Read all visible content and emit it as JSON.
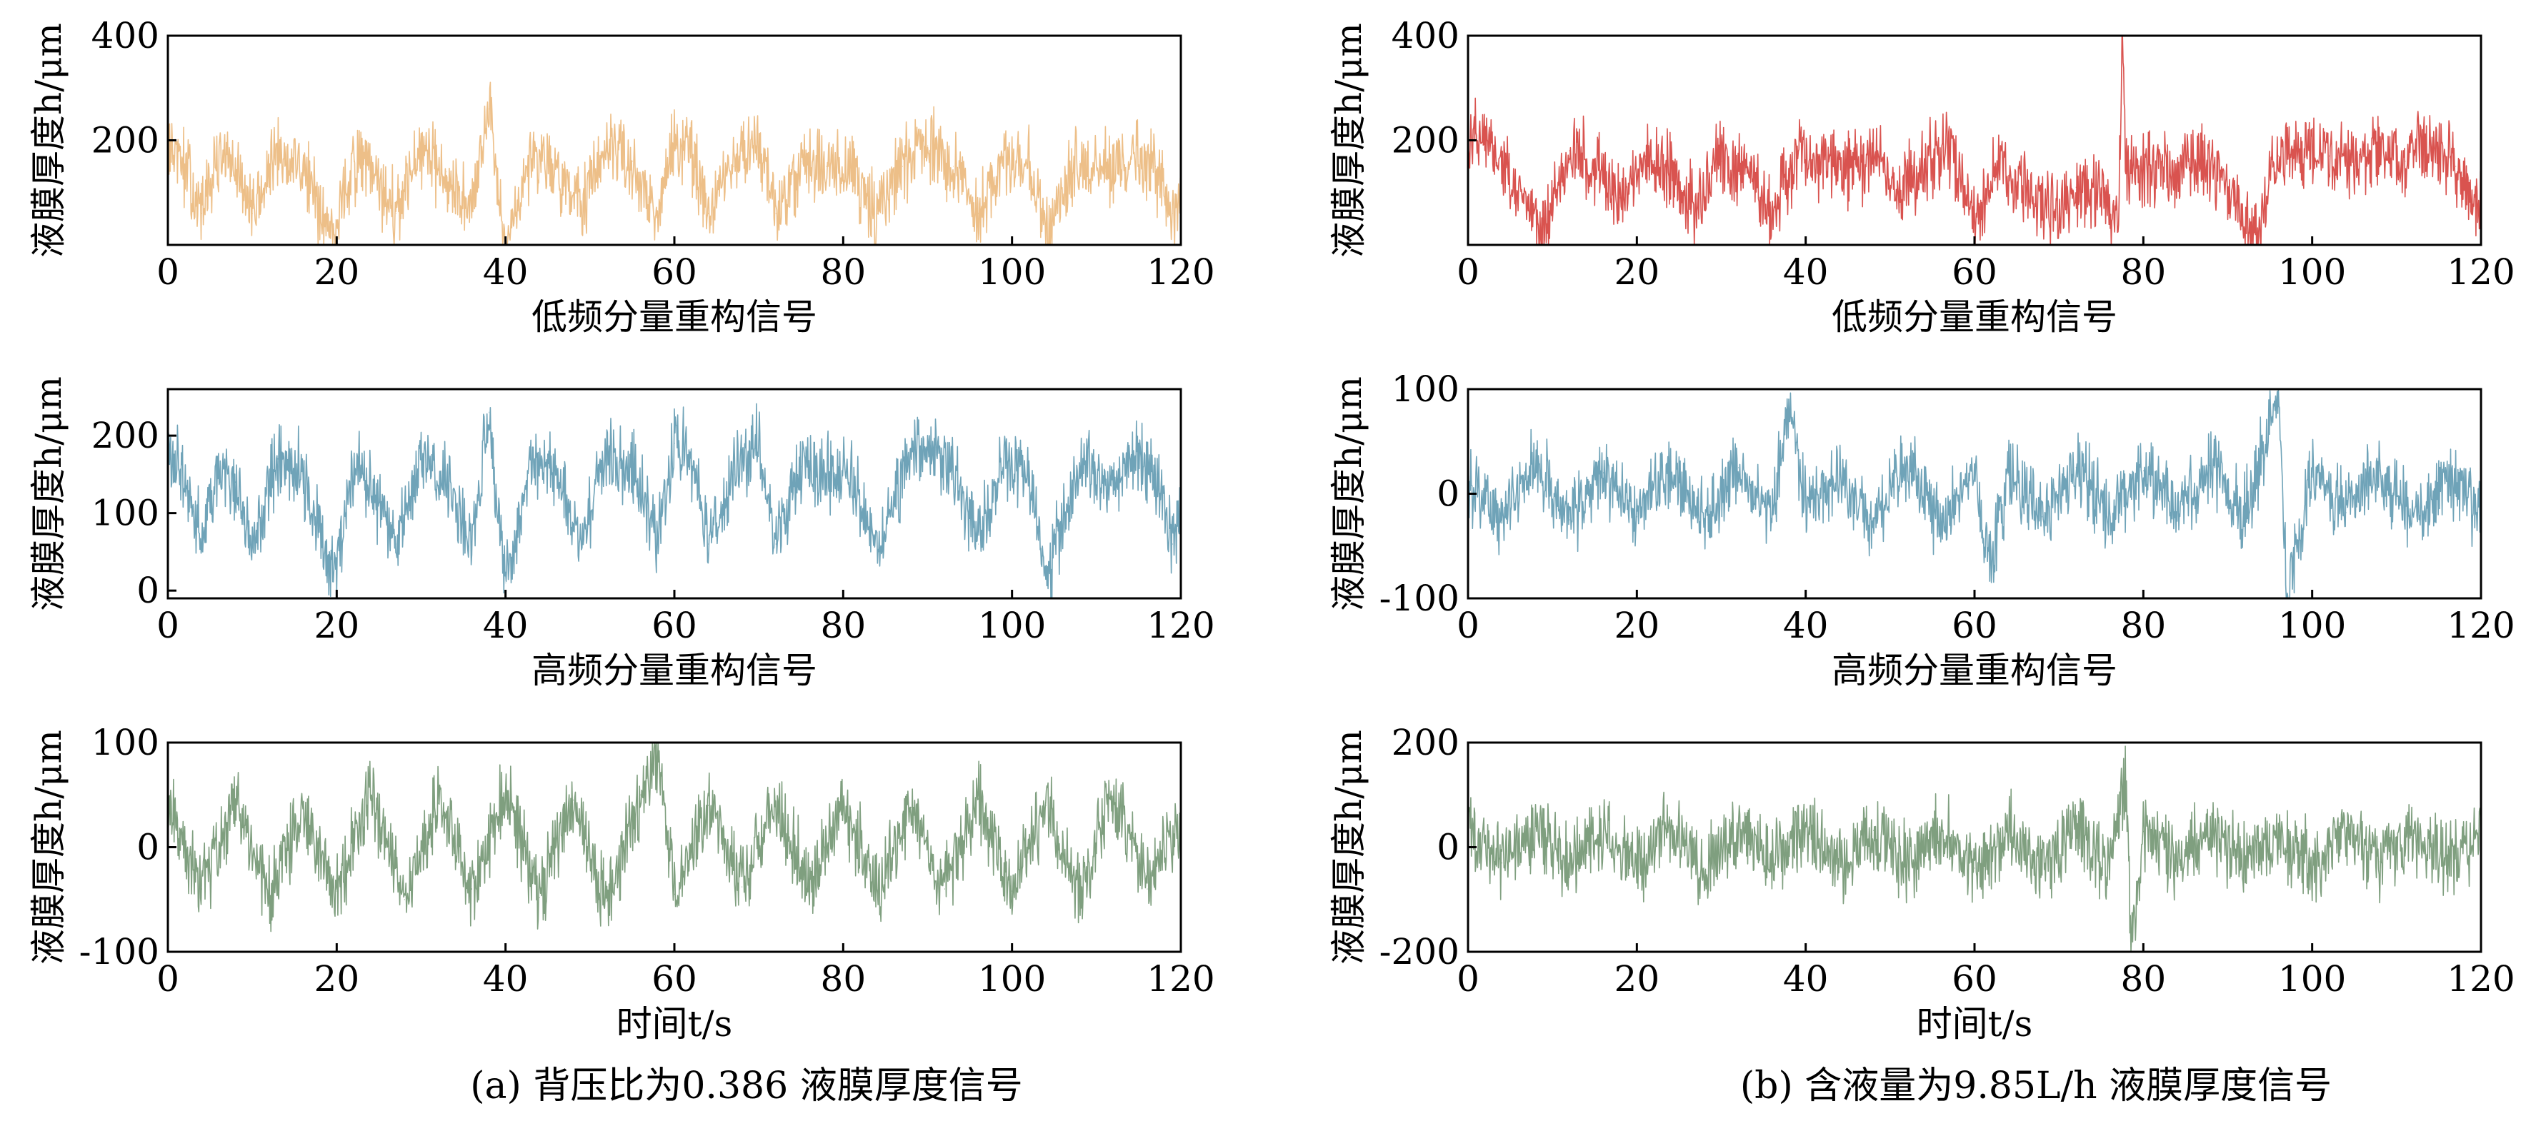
{
  "figure": {
    "captions": {
      "a": "(a) 背压比为0.386 液膜厚度信号",
      "b": "(b) 含液量为9.85L/h 液膜厚度信号"
    }
  },
  "chart_data": [
    {
      "id": "a1",
      "type": "line",
      "panel": "a",
      "title": "",
      "xlabel": "低频分量重构信号",
      "ylabel": "液膜厚度h/μm",
      "xlim": [
        0,
        120
      ],
      "ylim": [
        0,
        400
      ],
      "xticks": [
        0,
        20,
        40,
        60,
        80,
        100,
        120
      ],
      "yticks": [
        200,
        400
      ],
      "color": "#EDBF88",
      "grid": false,
      "series": [
        {
          "x": [
            0,
            2,
            4,
            6,
            8,
            10,
            13,
            16,
            19,
            20,
            22,
            24,
            27,
            30,
            33,
            36,
            38,
            40,
            43,
            46,
            49,
            52,
            55,
            58,
            60,
            62,
            64,
            67,
            70,
            72,
            75,
            78,
            81,
            84,
            87,
            90,
            93,
            96,
            99,
            102,
            104,
            106,
            108,
            111,
            114,
            117,
            119,
            120
          ],
          "y": [
            180,
            150,
            60,
            170,
            140,
            60,
            170,
            150,
            30,
            40,
            160,
            140,
            60,
            170,
            140,
            60,
            260,
            10,
            170,
            150,
            60,
            180,
            160,
            60,
            190,
            170,
            60,
            150,
            200,
            60,
            160,
            150,
            140,
            60,
            150,
            190,
            150,
            60,
            170,
            150,
            20,
            90,
            160,
            140,
            170,
            150,
            60,
            100
          ]
        }
      ]
    },
    {
      "id": "a2",
      "type": "line",
      "panel": "a",
      "title": "",
      "xlabel": "高频分量重构信号",
      "ylabel": "液膜厚度h/μm",
      "xlim": [
        0,
        120
      ],
      "ylim": [
        -10,
        260
      ],
      "xticks": [
        0,
        20,
        40,
        60,
        80,
        100,
        120
      ],
      "yticks": [
        0,
        100,
        200
      ],
      "color": "#6FA3B8",
      "grid": false,
      "series": [
        {
          "x": [
            0,
            2,
            4,
            6,
            8,
            10,
            13,
            16,
            19,
            20,
            22,
            24,
            27,
            30,
            33,
            36,
            38,
            40,
            43,
            46,
            49,
            52,
            55,
            58,
            60,
            62,
            64,
            67,
            70,
            72,
            75,
            78,
            81,
            84,
            87,
            90,
            93,
            96,
            99,
            102,
            104,
            106,
            108,
            111,
            114,
            117,
            119,
            120
          ],
          "y": [
            180,
            150,
            60,
            170,
            140,
            60,
            170,
            150,
            30,
            40,
            160,
            140,
            60,
            170,
            140,
            60,
            230,
            10,
            170,
            150,
            60,
            180,
            160,
            60,
            190,
            170,
            60,
            150,
            200,
            60,
            160,
            150,
            140,
            60,
            150,
            190,
            150,
            60,
            170,
            150,
            20,
            90,
            160,
            140,
            170,
            150,
            60,
            100
          ]
        }
      ]
    },
    {
      "id": "a3",
      "type": "line",
      "panel": "a",
      "title": "",
      "xlabel": "时间t/s",
      "ylabel": "液膜厚度h/μm",
      "xlim": [
        0,
        120
      ],
      "ylim": [
        -100,
        100
      ],
      "xticks": [
        0,
        20,
        40,
        60,
        80,
        100,
        120
      ],
      "yticks": [
        -100,
        0,
        100
      ],
      "color": "#7F9F7F",
      "grid": false,
      "series": [
        {
          "x": [
            0,
            4,
            8,
            12,
            16,
            20,
            24,
            28,
            32,
            36,
            40,
            44,
            48,
            52,
            56,
            58,
            60,
            64,
            68,
            72,
            76,
            80,
            84,
            88,
            92,
            96,
            100,
            104,
            108,
            112,
            116,
            120
          ],
          "y": [
            40,
            -40,
            45,
            -45,
            38,
            -42,
            50,
            -50,
            42,
            -40,
            55,
            -48,
            45,
            -52,
            50,
            95,
            -45,
            40,
            -38,
            44,
            -40,
            42,
            -44,
            38,
            -40,
            46,
            -42,
            40,
            -44,
            48,
            -40,
            30
          ]
        }
      ]
    },
    {
      "id": "b1",
      "type": "line",
      "panel": "b",
      "title": "",
      "xlabel": "低频分量重构信号",
      "ylabel": "液膜厚度h/μm",
      "xlim": [
        0,
        120
      ],
      "ylim": [
        0,
        400
      ],
      "xticks": [
        0,
        20,
        40,
        60,
        80,
        100,
        120
      ],
      "yticks": [
        200,
        400
      ],
      "color": "#D9534F",
      "grid": false,
      "series": [
        {
          "x": [
            0,
            3,
            6,
            9,
            12,
            15,
            18,
            21,
            24,
            27,
            30,
            33,
            36,
            39,
            42,
            45,
            48,
            51,
            54,
            57,
            60,
            63,
            66,
            69,
            72,
            75,
            77,
            77.5,
            78,
            81,
            84,
            87,
            90,
            93,
            96,
            99,
            102,
            105,
            108,
            111,
            114,
            117,
            120
          ],
          "y": [
            200,
            180,
            100,
            30,
            180,
            150,
            90,
            170,
            140,
            80,
            160,
            150,
            60,
            170,
            150,
            140,
            170,
            100,
            150,
            190,
            40,
            150,
            120,
            60,
            110,
            100,
            30,
            400,
            130,
            150,
            140,
            160,
            100,
            10,
            170,
            180,
            170,
            150,
            180,
            160,
            190,
            150,
            60
          ]
        }
      ]
    },
    {
      "id": "b2",
      "type": "line",
      "panel": "b",
      "title": "",
      "xlabel": "高频分量重构信号",
      "ylabel": "液膜厚度h/μm",
      "xlim": [
        0,
        120
      ],
      "ylim": [
        -100,
        100
      ],
      "xticks": [
        0,
        20,
        40,
        60,
        80,
        100,
        120
      ],
      "yticks": [
        -100,
        0,
        100
      ],
      "color": "#6FA3B8",
      "grid": false,
      "series": [
        {
          "x": [
            0,
            4,
            8,
            12,
            16,
            20,
            24,
            28,
            32,
            36,
            38,
            40,
            44,
            48,
            52,
            56,
            60,
            62,
            64,
            68,
            72,
            76,
            80,
            84,
            88,
            92,
            96,
            97,
            100,
            104,
            108,
            112,
            116,
            120
          ],
          "y": [
            15,
            -20,
            30,
            -25,
            20,
            -22,
            28,
            -30,
            25,
            -20,
            85,
            -18,
            22,
            -25,
            30,
            -28,
            20,
            -70,
            18,
            -22,
            25,
            -20,
            22,
            -18,
            25,
            -20,
            90,
            -95,
            20,
            -18,
            22,
            -20,
            18,
            -15
          ]
        }
      ]
    },
    {
      "id": "b3",
      "type": "line",
      "panel": "b",
      "title": "",
      "xlabel": "时间t/s",
      "ylabel": "液膜厚度h/μm",
      "xlim": [
        0,
        120
      ],
      "ylim": [
        -200,
        200
      ],
      "xticks": [
        0,
        20,
        40,
        60,
        80,
        100,
        120
      ],
      "yticks": [
        -200,
        0,
        200
      ],
      "color": "#7F9F7F",
      "grid": false,
      "series": [
        {
          "x": [
            0,
            4,
            8,
            12,
            16,
            20,
            24,
            28,
            32,
            36,
            40,
            44,
            48,
            52,
            56,
            60,
            64,
            68,
            72,
            76,
            78,
            78.5,
            80,
            84,
            88,
            92,
            96,
            100,
            104,
            108,
            112,
            116,
            120
          ],
          "y": [
            30,
            -30,
            40,
            -35,
            30,
            -32,
            38,
            -40,
            35,
            -30,
            40,
            -38,
            32,
            -36,
            38,
            -40,
            30,
            -28,
            32,
            -30,
            120,
            -190,
            30,
            -28,
            32,
            -30,
            28,
            -30,
            32,
            -28,
            30,
            -26,
            20
          ]
        }
      ]
    }
  ]
}
